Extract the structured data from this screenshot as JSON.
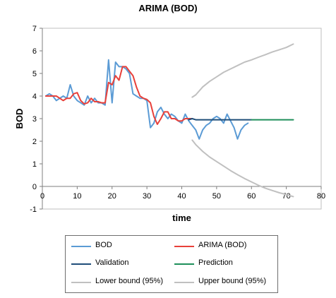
{
  "chart_data": {
    "type": "line",
    "title": "ARIMA (BOD)",
    "xlabel": "time",
    "ylabel": "BOD",
    "xlim": [
      0,
      80
    ],
    "ylim": [
      -1,
      7
    ],
    "xticks": [
      0,
      10,
      20,
      30,
      40,
      50,
      60,
      70,
      80
    ],
    "yticks": [
      -1,
      0,
      1,
      2,
      3,
      4,
      5,
      6,
      7
    ],
    "grid": false,
    "legend_position": "bottom",
    "series": [
      {
        "name": "BOD",
        "color": "#5b9bd5",
        "x": [
          1,
          2,
          3,
          4,
          5,
          6,
          7,
          8,
          9,
          10,
          11,
          12,
          13,
          14,
          15,
          16,
          17,
          18,
          19,
          20,
          21,
          22,
          23,
          24,
          25,
          26,
          27,
          28,
          29,
          30,
          31,
          32,
          33,
          34,
          35,
          36,
          37,
          38,
          39,
          40,
          41,
          42,
          43,
          44,
          45,
          46,
          47,
          48,
          49,
          50,
          51,
          52,
          53,
          54,
          55,
          56,
          57,
          58,
          59,
          60
        ],
        "y": [
          4.0,
          4.1,
          4.0,
          3.8,
          3.9,
          4.0,
          3.9,
          4.5,
          4.0,
          3.8,
          3.7,
          3.6,
          4.0,
          3.7,
          3.9,
          3.7,
          3.7,
          3.6,
          5.6,
          3.7,
          5.5,
          5.3,
          5.3,
          5.2,
          5.0,
          4.1,
          4.0,
          3.9,
          3.9,
          3.8,
          2.6,
          2.8,
          3.3,
          3.5,
          3.2,
          3.0,
          3.2,
          3.1,
          2.9,
          2.8,
          3.2,
          2.9,
          2.7,
          2.5,
          2.1,
          2.5,
          2.7,
          2.8,
          3.0,
          3.1,
          3.0,
          2.8,
          3.2,
          2.9,
          2.6,
          2.1,
          2.5,
          2.7,
          2.8,
          null
        ]
      },
      {
        "name": "ARIMA (BOD)",
        "color": "#e8403a",
        "x": [
          1,
          2,
          3,
          4,
          5,
          6,
          7,
          8,
          9,
          10,
          11,
          12,
          13,
          14,
          15,
          16,
          17,
          18,
          19,
          20,
          21,
          22,
          23,
          24,
          25,
          26,
          27,
          28,
          29,
          30,
          31,
          32,
          33,
          34,
          35,
          36,
          37,
          38,
          39,
          40,
          41,
          42,
          43
        ],
        "y": [
          4.0,
          4.0,
          4.0,
          4.0,
          3.9,
          3.8,
          3.9,
          3.9,
          4.1,
          4.15,
          3.8,
          3.65,
          3.7,
          3.9,
          3.75,
          3.75,
          3.7,
          3.7,
          4.6,
          4.5,
          4.9,
          4.7,
          5.3,
          5.3,
          5.1,
          4.9,
          4.4,
          4.0,
          3.9,
          3.85,
          3.7,
          3.1,
          2.75,
          3.0,
          3.3,
          3.3,
          3.0,
          3.0,
          2.9,
          2.9,
          3.0,
          3.0,
          3.0
        ]
      },
      {
        "name": "Validation",
        "color": "#1f4e79",
        "x": [
          42,
          43,
          44,
          45,
          46,
          47,
          48,
          49,
          50,
          51,
          52,
          53,
          54,
          55,
          56,
          57,
          58,
          59,
          60
        ],
        "y": [
          2.95,
          3.0,
          2.95,
          2.95,
          2.95,
          2.95,
          2.95,
          2.95,
          2.95,
          2.95,
          2.95,
          2.95,
          2.95,
          2.95,
          2.95,
          2.95,
          2.95,
          2.95,
          2.95
        ]
      },
      {
        "name": "Prediction",
        "color": "#1e8f5a",
        "x": [
          60,
          61,
          62,
          63,
          64,
          65,
          66,
          67,
          68,
          69,
          70,
          71,
          72
        ],
        "y": [
          2.95,
          2.95,
          2.95,
          2.95,
          2.95,
          2.95,
          2.95,
          2.95,
          2.95,
          2.95,
          2.95,
          2.95,
          2.95
        ]
      },
      {
        "name": "Lower bound (95%)",
        "color": "#c0c0c0",
        "x": [
          43,
          44,
          46,
          48,
          50,
          52,
          54,
          56,
          58,
          60,
          62,
          64,
          66,
          68,
          70,
          72
        ],
        "y": [
          2.05,
          1.85,
          1.55,
          1.3,
          1.1,
          0.9,
          0.7,
          0.52,
          0.35,
          0.2,
          0.05,
          -0.08,
          -0.18,
          -0.28,
          -0.36,
          -0.45
        ]
      },
      {
        "name": "Upper bound (95%)",
        "color": "#c0c0c0",
        "x": [
          43,
          44,
          46,
          48,
          50,
          52,
          54,
          56,
          58,
          60,
          62,
          64,
          66,
          68,
          70,
          72
        ],
        "y": [
          3.95,
          4.05,
          4.4,
          4.65,
          4.85,
          5.05,
          5.2,
          5.35,
          5.5,
          5.6,
          5.72,
          5.83,
          5.95,
          6.05,
          6.15,
          6.3
        ]
      }
    ]
  }
}
